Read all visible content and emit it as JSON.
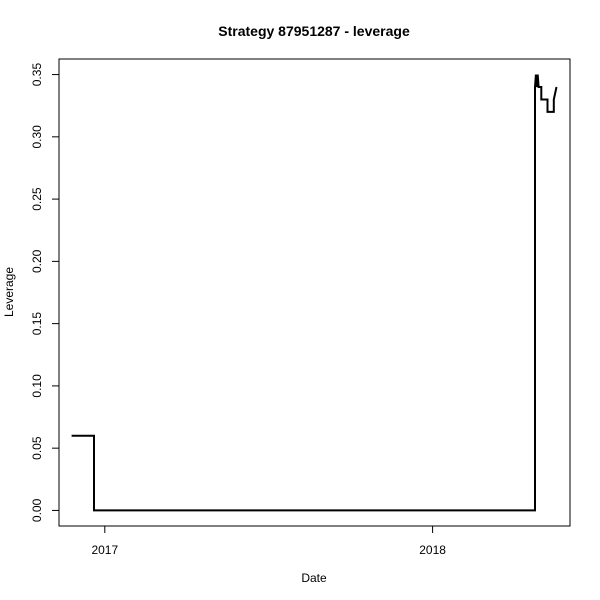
{
  "chart_data": {
    "type": "line",
    "title": "Strategy 87951287 - leverage",
    "xlabel": "Date",
    "ylabel": "Leverage",
    "xlim": [
      "2016-11-11",
      "2018-06-03"
    ],
    "ylim": [
      -0.0125,
      0.3625
    ],
    "x_ticks": [
      {
        "date": "2017-01-01",
        "label": "2017"
      },
      {
        "date": "2018-01-01",
        "label": "2018"
      }
    ],
    "y_ticks": [
      {
        "value": 0.0,
        "label": "0.00"
      },
      {
        "value": 0.05,
        "label": "0.05"
      },
      {
        "value": 0.1,
        "label": "0.10"
      },
      {
        "value": 0.15,
        "label": "0.15"
      },
      {
        "value": 0.2,
        "label": "0.20"
      },
      {
        "value": 0.25,
        "label": "0.25"
      },
      {
        "value": 0.3,
        "label": "0.30"
      },
      {
        "value": 0.35,
        "label": "0.35"
      }
    ],
    "grid": false,
    "series": [
      {
        "color": "#000000",
        "points": [
          {
            "x": "2016-11-25",
            "y": 0.06
          },
          {
            "x": "2016-12-20",
            "y": 0.06
          },
          {
            "x": "2016-12-20",
            "y": 0.0
          },
          {
            "x": "2018-04-25",
            "y": 0.0
          },
          {
            "x": "2018-04-25",
            "y": 0.34
          },
          {
            "x": "2018-04-26",
            "y": 0.35
          },
          {
            "x": "2018-04-27",
            "y": 0.34
          },
          {
            "x": "2018-04-28",
            "y": 0.35
          },
          {
            "x": "2018-04-29",
            "y": 0.34
          },
          {
            "x": "2018-05-02",
            "y": 0.34
          },
          {
            "x": "2018-05-02",
            "y": 0.33
          },
          {
            "x": "2018-05-09",
            "y": 0.33
          },
          {
            "x": "2018-05-09",
            "y": 0.32
          },
          {
            "x": "2018-05-16",
            "y": 0.32
          },
          {
            "x": "2018-05-16",
            "y": 0.33
          },
          {
            "x": "2018-05-19",
            "y": 0.34
          }
        ]
      }
    ]
  }
}
